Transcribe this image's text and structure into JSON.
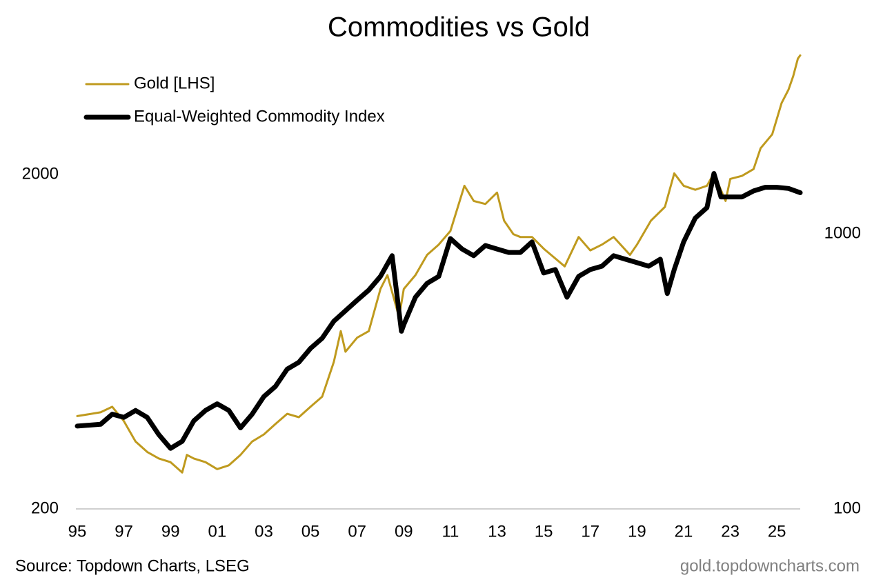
{
  "chart_data": {
    "type": "line",
    "title": "Commodities vs Gold",
    "source": "Source: Topdown Charts, LSEG",
    "website": "gold.topdowncharts.com",
    "xlim": [
      1995,
      2026
    ],
    "xticks": [
      {
        "value": 1995,
        "label": "95"
      },
      {
        "value": 1997,
        "label": "97"
      },
      {
        "value": 1999,
        "label": "99"
      },
      {
        "value": 2001,
        "label": "01"
      },
      {
        "value": 2003,
        "label": "03"
      },
      {
        "value": 2005,
        "label": "05"
      },
      {
        "value": 2007,
        "label": "07"
      },
      {
        "value": 2009,
        "label": "09"
      },
      {
        "value": 2011,
        "label": "11"
      },
      {
        "value": 2013,
        "label": "13"
      },
      {
        "value": 2015,
        "label": "15"
      },
      {
        "value": 2017,
        "label": "17"
      },
      {
        "value": 2019,
        "label": "19"
      },
      {
        "value": 2021,
        "label": "21"
      },
      {
        "value": 2023,
        "label": "23"
      },
      {
        "value": 2025,
        "label": "25"
      }
    ],
    "ylim": [
      200,
      5000
    ],
    "yticks": [
      200,
      2000
    ],
    "ylog": true,
    "y2lim": [
      100,
      5000
    ],
    "y2ticks": [
      100,
      1000
    ],
    "y2log": true,
    "legend": "top-left",
    "grid": false,
    "series": [
      {
        "name": "Gold [LHS]",
        "color": "#bf9a1e",
        "width": 3,
        "axis": "y",
        "x": [
          1995,
          1996,
          1996.5,
          1997,
          1997.5,
          1998,
          1998.5,
          1999,
          1999.5,
          1999.7,
          2000,
          2000.5,
          2001,
          2001.5,
          2002,
          2002.5,
          2003,
          2003.5,
          2004,
          2004.5,
          2005,
          2005.5,
          2006,
          2006.3,
          2006.5,
          2007,
          2007.5,
          2008,
          2008.3,
          2008.8,
          2009,
          2009.5,
          2010,
          2010.5,
          2011,
          2011.6,
          2012,
          2012.5,
          2013,
          2013.3,
          2013.7,
          2014,
          2014.5,
          2015,
          2015.9,
          2016.5,
          2017,
          2017.5,
          2018,
          2018.7,
          2019,
          2019.6,
          2020.2,
          2020.6,
          2021,
          2021.5,
          2022,
          2022.3,
          2022.8,
          2023,
          2023.5,
          2024,
          2024.3,
          2024.8,
          2025.2,
          2025.5,
          2025.7,
          2025.9,
          2026
        ],
        "values": [
          379,
          389,
          404,
          366,
          318,
          296,
          283,
          276,
          257,
          290,
          283,
          276,
          263,
          270,
          290,
          318,
          334,
          359,
          385,
          376,
          404,
          433,
          550,
          680,
          590,
          650,
          680,
          909,
          1000,
          749,
          909,
          1000,
          1150,
          1234,
          1355,
          1850,
          1667,
          1632,
          1765,
          1455,
          1326,
          1300,
          1300,
          1200,
          1062,
          1300,
          1186,
          1234,
          1300,
          1150,
          1234,
          1455,
          1600,
          2015,
          1850,
          1800,
          1850,
          2015,
          1667,
          1940,
          1980,
          2075,
          2394,
          2636,
          3270,
          3590,
          3940,
          4440,
          4540
        ]
      },
      {
        "name": "Equal-Weighted Commodity Index",
        "color": "#000000",
        "width": 7,
        "axis": "y2",
        "x": [
          1995,
          1996,
          1996.5,
          1997,
          1997.5,
          1998,
          1998.5,
          1999,
          1999.5,
          2000,
          2000.5,
          2001,
          2001.5,
          2002,
          2002.5,
          2003,
          2003.5,
          2004,
          2004.5,
          2005,
          2005.5,
          2006,
          2006.5,
          2007,
          2007.5,
          2008,
          2008.5,
          2008.9,
          2009,
          2009.5,
          2010,
          2010.5,
          2011,
          2011.5,
          2012,
          2012.5,
          2013,
          2013.5,
          2014,
          2014.5,
          2015,
          2015.5,
          2016,
          2016.5,
          2017,
          2017.5,
          2018,
          2018.5,
          2019,
          2019.5,
          2020,
          2020.3,
          2020.6,
          2021,
          2021.5,
          2022,
          2022.3,
          2022.6,
          2023,
          2023.5,
          2024,
          2024.5,
          2025,
          2025.5,
          2026
        ],
        "values": [
          200,
          203,
          221,
          215,
          228,
          215,
          186,
          166,
          176,
          209,
          228,
          241,
          228,
          197,
          221,
          256,
          279,
          322,
          341,
          383,
          417,
          481,
          525,
          573,
          624,
          700,
          832,
          442,
          467,
          588,
          660,
          700,
          960,
          880,
          832,
          906,
          880,
          855,
          855,
          934,
          720,
          741,
          588,
          700,
          741,
          762,
          832,
          808,
          785,
          762,
          808,
          606,
          741,
          934,
          1140,
          1244,
          1655,
          1360,
          1360,
          1360,
          1430,
          1475,
          1475,
          1460,
          1410
        ]
      }
    ]
  }
}
